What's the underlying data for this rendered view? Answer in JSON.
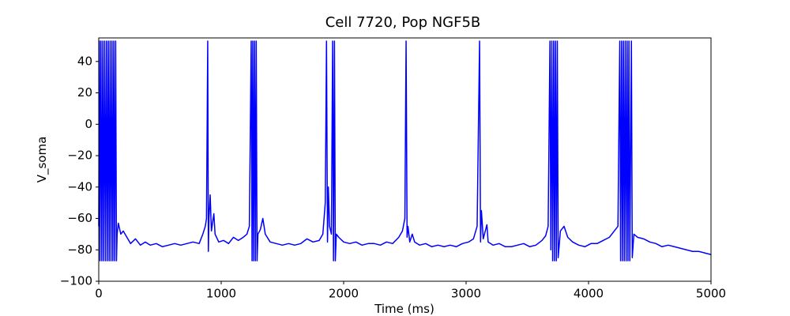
{
  "chart_data": {
    "type": "line",
    "title": "Cell 7720, Pop NGF5B",
    "x_label": "Time (ms)",
    "y_label": "V_soma",
    "color": "#0000ff",
    "grid": false,
    "xlim": [
      0,
      5000
    ],
    "ylim": [
      -100,
      55
    ],
    "xticks": [
      0,
      1000,
      2000,
      3000,
      4000,
      5000
    ],
    "yticks": [
      {
        "value": -100,
        "label": "−100"
      },
      {
        "value": -80,
        "label": "−80"
      },
      {
        "value": -60,
        "label": "−60"
      },
      {
        "value": -40,
        "label": "−40"
      },
      {
        "value": -20,
        "label": "−20"
      },
      0,
      20,
      40
    ],
    "x": [
      0,
      5,
      10,
      18,
      25,
      33,
      40,
      48,
      55,
      63,
      70,
      78,
      85,
      93,
      100,
      108,
      115,
      123,
      130,
      138,
      145,
      150,
      160,
      180,
      200,
      230,
      260,
      300,
      340,
      380,
      420,
      470,
      520,
      570,
      620,
      670,
      720,
      770,
      820,
      850,
      870,
      880,
      890,
      895,
      900,
      910,
      920,
      940,
      950,
      980,
      1020,
      1060,
      1100,
      1140,
      1180,
      1210,
      1230,
      1245,
      1252,
      1258,
      1265,
      1272,
      1279,
      1286,
      1293,
      1300,
      1320,
      1340,
      1360,
      1400,
      1450,
      1500,
      1550,
      1600,
      1650,
      1700,
      1750,
      1800,
      1830,
      1850,
      1860,
      1868,
      1875,
      1885,
      1900,
      1910,
      1917,
      1925,
      1932,
      1940,
      1960,
      2000,
      2050,
      2100,
      2150,
      2200,
      2250,
      2300,
      2350,
      2400,
      2450,
      2480,
      2500,
      2510,
      2518,
      2525,
      2540,
      2560,
      2580,
      2620,
      2670,
      2720,
      2770,
      2820,
      2870,
      2920,
      2970,
      3020,
      3060,
      3090,
      3110,
      3118,
      3125,
      3140,
      3170,
      3180,
      3220,
      3270,
      3320,
      3370,
      3420,
      3470,
      3520,
      3570,
      3620,
      3650,
      3670,
      3685,
      3692,
      3700,
      3707,
      3715,
      3722,
      3730,
      3737,
      3745,
      3752,
      3770,
      3800,
      3830,
      3870,
      3920,
      3970,
      4020,
      4070,
      4120,
      4170,
      4210,
      4240,
      4255,
      4262,
      4270,
      4277,
      4285,
      4292,
      4300,
      4307,
      4315,
      4322,
      4330,
      4337,
      4350,
      4357,
      4370,
      4400,
      4450,
      4500,
      4550,
      4600,
      4650,
      4700,
      4750,
      4800,
      4850,
      4900,
      4950,
      5000
    ],
    "values": [
      -65,
      53,
      -87,
      53,
      -87,
      53,
      -87,
      53,
      -87,
      53,
      -87,
      53,
      -87,
      53,
      -87,
      53,
      -87,
      53,
      -87,
      53,
      -87,
      -70,
      -63,
      -70,
      -68,
      -72,
      -76,
      -73,
      -77,
      -75,
      -77,
      -76,
      -78,
      -77,
      -76,
      -77,
      -76,
      -75,
      -76,
      -70,
      -65,
      -60,
      53,
      -81,
      -60,
      -45,
      -68,
      -57,
      -70,
      -75,
      -74,
      -76,
      -72,
      -74,
      -72,
      -70,
      -65,
      53,
      -87,
      53,
      -87,
      53,
      -87,
      53,
      -87,
      -70,
      -67,
      -60,
      -70,
      -75,
      -76,
      -77,
      -76,
      -77,
      -76,
      -73,
      -75,
      -74,
      -70,
      -50,
      53,
      -75,
      -40,
      -65,
      -70,
      53,
      -87,
      53,
      -87,
      -70,
      -72,
      -75,
      -76,
      -75,
      -77,
      -76,
      -76,
      -77,
      -75,
      -76,
      -72,
      -68,
      -60,
      53,
      -72,
      -65,
      -75,
      -70,
      -75,
      -77,
      -76,
      -78,
      -77,
      -78,
      -77,
      -78,
      -76,
      -75,
      -73,
      -65,
      53,
      -75,
      -55,
      -73,
      -64,
      -75,
      -77,
      -76,
      -78,
      -78,
      -77,
      -76,
      -78,
      -77,
      -74,
      -71,
      -65,
      53,
      -80,
      53,
      -87,
      53,
      -87,
      53,
      -87,
      53,
      -85,
      -68,
      -65,
      -72,
      -75,
      -77,
      -78,
      -76,
      -76,
      -74,
      -72,
      -68,
      -65,
      53,
      -87,
      53,
      -87,
      53,
      -87,
      53,
      -87,
      53,
      -87,
      53,
      -87,
      53,
      -85,
      -70,
      -72,
      -73,
      -75,
      -76,
      -78,
      -77,
      -78,
      -79,
      -80,
      -81,
      -81,
      -82,
      -83
    ]
  }
}
